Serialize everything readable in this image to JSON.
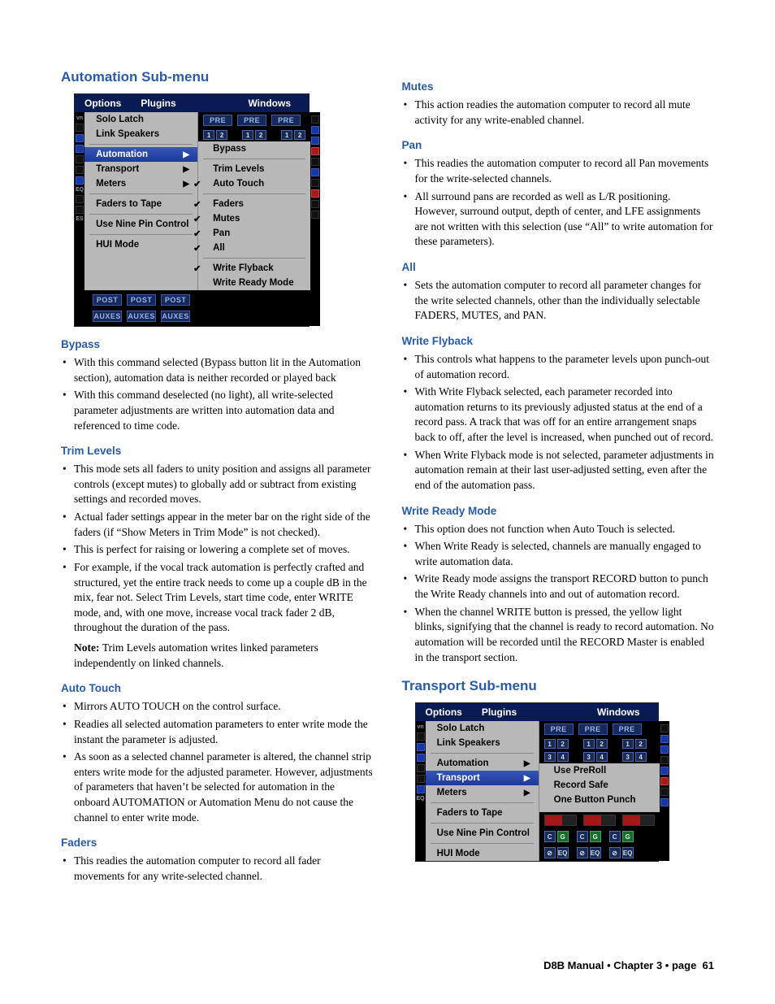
{
  "colors": {
    "heading": "#2a5ca5",
    "menu_bg": "#0a1a52",
    "panel_bg": "#b8b8b8",
    "highlight": "#2a4ab0"
  },
  "left": {
    "title": "Automation Sub-menu",
    "menu": {
      "top": [
        "Options",
        "Plugins",
        "Windows"
      ],
      "pre_label": "PRE",
      "nums": [
        "1",
        "2",
        "3",
        "4"
      ],
      "items": [
        {
          "t": "Solo Latch",
          "arrow": false
        },
        {
          "t": "Link Speakers",
          "arrow": false
        },
        {
          "sep": true
        },
        {
          "t": "Automation",
          "arrow": true,
          "hl": true
        },
        {
          "t": "Transport",
          "arrow": true
        },
        {
          "t": "Meters",
          "arrow": true
        },
        {
          "sep": true
        },
        {
          "t": "Faders to Tape",
          "arrow": false
        },
        {
          "sep": true
        },
        {
          "t": "Use Nine Pin Control",
          "arrow": false
        },
        {
          "sep": true
        },
        {
          "t": "HUI Mode",
          "arrow": false
        }
      ],
      "sub": [
        {
          "t": "Bypass",
          "c": false
        },
        {
          "sep": true
        },
        {
          "t": "Trim Levels",
          "c": false
        },
        {
          "t": "Auto Touch",
          "c": true
        },
        {
          "sep": true
        },
        {
          "t": "Faders",
          "c": true
        },
        {
          "t": "Mutes",
          "c": true
        },
        {
          "t": "Pan",
          "c": true
        },
        {
          "t": "All",
          "c": true
        },
        {
          "sep": true
        },
        {
          "t": "Write Flyback",
          "c": true
        },
        {
          "t": "Write Ready Mode",
          "c": false
        }
      ],
      "post_label": "POST",
      "aux_label": "AUXES"
    },
    "sections": [
      {
        "h": "Bypass",
        "items": [
          "With this command selected (Bypass button lit in the Automation section), automation data is neither recorded or played back",
          "With this command deselected (no light), all write-selected parameter adjustments are written into automation data and referenced to time code."
        ]
      },
      {
        "h": "Trim Levels",
        "items": [
          "This mode sets all faders to unity position and assigns all parameter controls (except mutes) to globally add or subtract from existing settings and recorded moves.",
          "Actual fader settings appear in the meter bar on the right side of the faders (if “Show Meters in Trim Mode” is not checked).",
          "This is perfect for raising or lowering a complete set of moves.",
          "For example, if the vocal track automation is perfectly crafted and structured, yet the entire track needs to come up a couple dB in the mix, fear not. Select Trim Levels, start time code, enter WRITE mode, and, with one move, increase vocal track fader 2 dB, throughout the duration of the pass."
        ],
        "note": "Trim Levels automation writes linked parameters independently on linked channels."
      },
      {
        "h": "Auto Touch",
        "items": [
          "Mirrors AUTO TOUCH on the control surface.",
          "Readies all selected automation parameters to enter write mode the instant the parameter is adjusted.",
          "As soon as a selected channel parameter is altered, the channel strip enters write mode for the adjusted parameter. However, adjustments of parameters that haven’t be selected for automation in the onboard AUTOMATION or Automation Menu do not cause the channel to enter write mode."
        ]
      },
      {
        "h": "Faders",
        "items": [
          "This readies the automation computer to record all fader movements for any write-selected channel."
        ]
      }
    ]
  },
  "right": {
    "sections": [
      {
        "h": "Mutes",
        "items": [
          "This action readies the automation computer to record all mute activity for any write-enabled channel."
        ]
      },
      {
        "h": "Pan",
        "items": [
          "This readies the automation computer to record all Pan movements for the write-selected channels.",
          "All surround pans are recorded as well as L/R positioning. However, surround output, depth of center, and LFE assignments are not written with this selection (use “All” to write automation for these parameters)."
        ]
      },
      {
        "h": "All",
        "items": [
          "Sets the automation computer to record all parameter changes for the write selected channels, other than the individually selectable FADERS, MUTES, and PAN."
        ]
      },
      {
        "h": "Write Flyback",
        "items": [
          "This controls what happens to the parameter levels upon punch-out of automation record.",
          "With Write Flyback selected, each parameter recorded into automation returns to its previously adjusted status at the end of a record pass. A track that was off for an entire arrangement snaps back to off, after the level is increased, when punched out of record.",
          "When Write Flyback mode is not selected, parameter adjustments in automation remain at their last user-adjusted setting, even after the end of the automation pass."
        ]
      },
      {
        "h": "Write Ready Mode",
        "items": [
          "This option does not function when Auto Touch is selected.",
          "When Write Ready is selected, channels are manually engaged to write automation data.",
          "Write Ready mode assigns the transport RECORD button to punch the Write Ready channels into and out of automation record.",
          "When the channel WRITE button is pressed, the yellow light blinks, signifying that the channel is ready to record automation. No automation will be recorded until the RECORD Master is enabled in the transport section."
        ]
      }
    ],
    "title2": "Transport Sub-menu",
    "menu2": {
      "top": [
        "Options",
        "Plugins",
        "Windows"
      ],
      "pre_label": "PRE",
      "items": [
        {
          "t": "Solo Latch"
        },
        {
          "t": "Link Speakers"
        },
        {
          "sep": true
        },
        {
          "t": "Automation",
          "arrow": true
        },
        {
          "t": "Transport",
          "arrow": true,
          "hl": true
        },
        {
          "t": "Meters",
          "arrow": true
        },
        {
          "sep": true
        },
        {
          "t": "Faders to Tape"
        },
        {
          "sep": true
        },
        {
          "t": "Use Nine Pin Control"
        },
        {
          "sep": true
        },
        {
          "t": "HUI Mode"
        }
      ],
      "sub": [
        {
          "t": "Use PreRoll"
        },
        {
          "t": "Record Safe"
        },
        {
          "t": "One Button Punch"
        }
      ],
      "cg_labels": [
        "C",
        "G"
      ],
      "eq": "EQ"
    }
  },
  "footer": "D8B Manual • Chapter 3 • page  61",
  "note_prefix": "Note:"
}
